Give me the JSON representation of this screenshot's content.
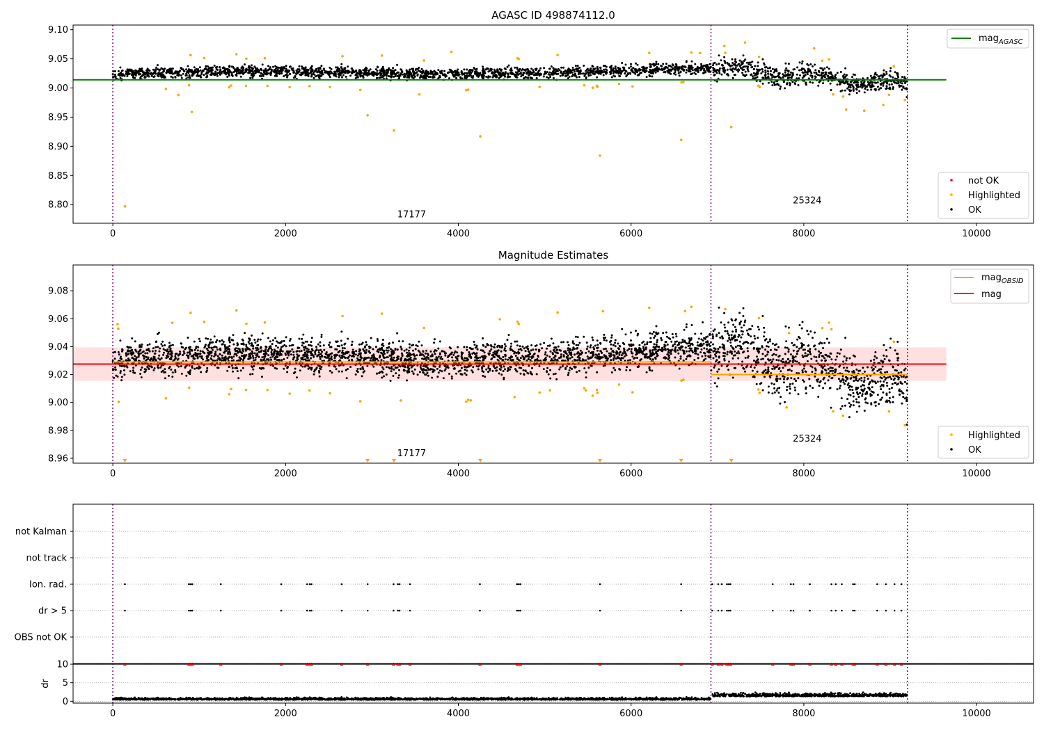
{
  "chart_data": [
    {
      "type": "scatter",
      "title": "AGASC ID 498874112.0",
      "xlabel": "",
      "ylabel": "",
      "xlim": [
        -460,
        10660
      ],
      "ylim": [
        8.768,
        9.108
      ],
      "x_ticks": [
        "0",
        "2000",
        "4000",
        "6000",
        "8000",
        "10000"
      ],
      "y_ticks": [
        "8.80",
        "8.85",
        "8.90",
        "8.95",
        "9.00",
        "9.05",
        "9.10"
      ],
      "grid": false,
      "obsid_boundaries": [
        0,
        6925,
        9200
      ],
      "obsid_labels": [
        {
          "label": "17177",
          "x": 3460,
          "y": 8.778
        },
        {
          "label": "25324",
          "x": 8040,
          "y": 8.802
        }
      ],
      "mag_agasc": 9.014,
      "mag_agasc_x_range": [
        -460,
        9650
      ],
      "series": [
        {
          "name": "not OK",
          "color": "#ff0000"
        },
        {
          "name": "Highlighted",
          "color": "#ffa500"
        },
        {
          "name": "OK",
          "color": "#000000"
        }
      ],
      "highlighted_points": [
        {
          "x": 140,
          "y": 8.797
        },
        {
          "x": 915,
          "y": 8.959
        },
        {
          "x": 2950,
          "y": 8.953
        },
        {
          "x": 3255,
          "y": 8.927
        },
        {
          "x": 3550,
          "y": 8.989
        },
        {
          "x": 4255,
          "y": 8.917
        },
        {
          "x": 5640,
          "y": 8.884
        },
        {
          "x": 6580,
          "y": 8.911
        },
        {
          "x": 7160,
          "y": 8.933
        },
        {
          "x": 760,
          "y": 8.988
        },
        {
          "x": 8490,
          "y": 8.963
        },
        {
          "x": 8700,
          "y": 8.961
        },
        {
          "x": 8920,
          "y": 8.971
        },
        {
          "x": 3920,
          "y": 9.062
        },
        {
          "x": 7320,
          "y": 9.078
        },
        {
          "x": 7080,
          "y": 9.072
        },
        {
          "x": 8120,
          "y": 9.068
        },
        {
          "x": 6800,
          "y": 9.06
        }
      ],
      "legends": [
        {
          "position": "upper-right",
          "entries": [
            "mag_AGASC"
          ]
        },
        {
          "position": "lower-right",
          "entries": [
            "not OK",
            "Highlighted",
            "OK"
          ]
        }
      ]
    },
    {
      "type": "scatter",
      "title": "Magnitude Estimates",
      "xlabel": "",
      "ylabel": "",
      "xlim": [
        -460,
        10660
      ],
      "ylim": [
        8.9565,
        9.0985
      ],
      "x_ticks": [
        "0",
        "2000",
        "4000",
        "6000",
        "8000",
        "10000"
      ],
      "y_ticks": [
        "8.96",
        "8.98",
        "9.00",
        "9.02",
        "9.04",
        "9.06",
        "9.08"
      ],
      "grid": false,
      "obsid_boundaries": [
        0,
        6925,
        9200
      ],
      "obsid_labels": [
        {
          "label": "17177",
          "x": 3460,
          "y": 8.9615
        },
        {
          "label": "25324",
          "x": 8040,
          "y": 8.972
        }
      ],
      "mag": 9.0275,
      "mag_band": [
        9.0155,
        9.0395
      ],
      "mag_obsid": [
        {
          "x_range": [
            0,
            6925
          ],
          "value": 9.029
        },
        {
          "x_range": [
            6925,
            9200
          ],
          "value": 9.02
        }
      ],
      "series": [
        {
          "name": "Highlighted",
          "color": "#ffa500"
        },
        {
          "name": "OK",
          "color": "#000000"
        }
      ],
      "out_of_range_markers_x": [
        140,
        2950,
        3255,
        4255,
        5640,
        6580,
        7160
      ],
      "legends": [
        {
          "position": "upper-right",
          "entries": [
            "mag_OBSID",
            "mag"
          ]
        },
        {
          "position": "lower-right",
          "entries": [
            "Highlighted",
            "OK"
          ]
        }
      ]
    },
    {
      "type": "scatter",
      "title": "",
      "xlabel": "",
      "ylabel": "",
      "xlim": [
        -460,
        10660
      ],
      "categories": [
        "not Kalman",
        "not track",
        "Ion. rad.",
        "dr > 5",
        "OBS not OK"
      ],
      "flag_x": [
        140,
        880,
        900,
        920,
        1250,
        1950,
        2250,
        2280,
        2300,
        2650,
        2950,
        3250,
        3300,
        3320,
        3440,
        4250,
        4680,
        4700,
        4720,
        5640,
        6580,
        6940,
        7010,
        7050,
        7110,
        7130,
        7150,
        7640,
        7850,
        7880,
        8070,
        8320,
        8370,
        8440,
        8570,
        8590,
        8850,
        8950,
        9050,
        9130
      ],
      "flagged_categories": [
        "Ion. rad.",
        "dr > 5"
      ],
      "obsid_boundaries": [
        0,
        6925,
        9200
      ],
      "grid": true
    },
    {
      "type": "scatter",
      "title": "",
      "xlabel": "",
      "ylabel": "dr",
      "xlim": [
        -460,
        10660
      ],
      "ylim": [
        -0.5,
        10.2
      ],
      "y_ticks": [
        "0",
        "5",
        "10"
      ],
      "x_ticks": [
        "0",
        "2000",
        "4000",
        "6000",
        "8000",
        "10000"
      ],
      "dr_level_obsid": [
        {
          "x_range": [
            0,
            6925
          ],
          "value": 0.4
        },
        {
          "x_range": [
            6925,
            9200
          ],
          "value": 1.3
        }
      ],
      "clipped_markers_y": 10,
      "clipped_markers_x": [
        140,
        880,
        900,
        920,
        1250,
        1950,
        2250,
        2280,
        2300,
        2650,
        2950,
        3250,
        3300,
        3320,
        3440,
        4250,
        4680,
        4700,
        4720,
        5640,
        6580,
        6940,
        7010,
        7050,
        7110,
        7130,
        7150,
        7640,
        7850,
        7880,
        8070,
        8320,
        8370,
        8440,
        8570,
        8590,
        8850,
        8950,
        9050,
        9130
      ],
      "obsid_boundaries": [
        0,
        6925,
        9200
      ],
      "grid": true
    }
  ],
  "legend": {
    "mag_agasc_main": "mag",
    "mag_agasc_sub": "AGASC",
    "not_ok": "not OK",
    "highlighted": "Highlighted",
    "ok": "OK",
    "mag_obsid_main": "mag",
    "mag_obsid_sub": "OBSID",
    "mag": "mag"
  }
}
